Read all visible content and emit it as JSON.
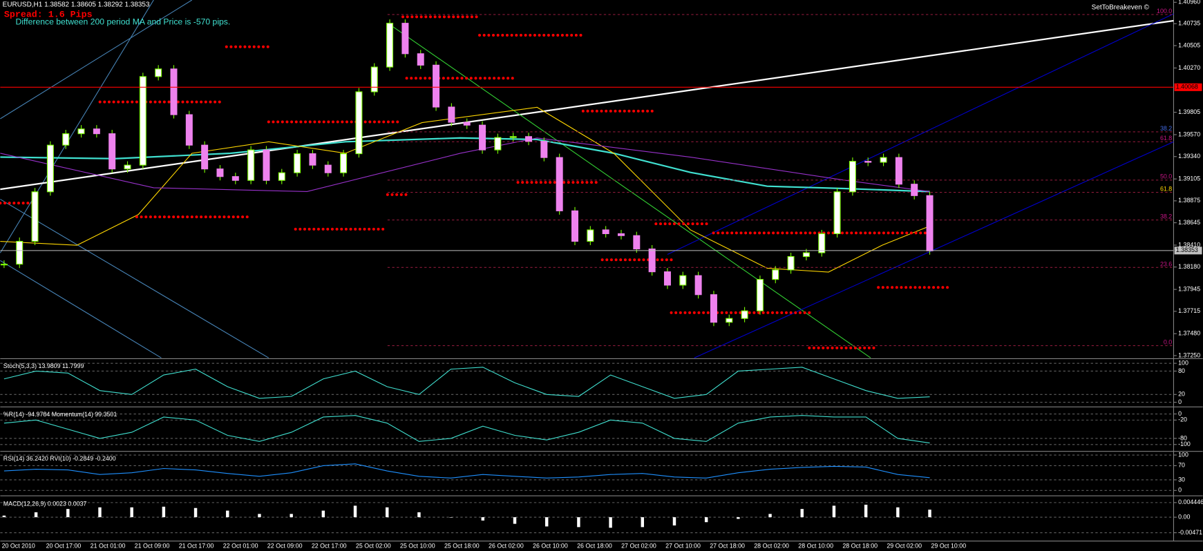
{
  "header": {
    "symbol_line": "EURUSD,H1  1.38582 1.38605 1.38292 1.38353",
    "spread": "Spread: 1.6 Pips",
    "ma_note": "Difference between 200 period MA and Price is -570 pips.",
    "expert": "SetToBreakeven ©"
  },
  "chart_data": [
    {
      "type": "candlestick",
      "bull_color": "#ffffff",
      "bull_edge": "#7cfc00",
      "bear_color": "#ee82ee",
      "values": [
        1.3821,
        1.3845,
        1.3897,
        1.3946,
        1.3958,
        1.3963,
        1.3958,
        1.3921,
        1.3925,
        1.4018,
        1.4026,
        1.3978,
        1.3946,
        1.3921,
        1.3913,
        1.3909,
        1.3941,
        1.3909,
        1.3917,
        1.3937,
        1.3925,
        1.3917,
        1.3937,
        1.4002,
        1.4028,
        1.4074,
        1.4042,
        1.403,
        1.3986,
        1.397,
        1.3967,
        1.3941,
        1.3954,
        1.3955,
        1.395,
        1.3933,
        1.3877,
        1.3845,
        1.3857,
        1.3853,
        1.3851,
        1.3837,
        1.3813,
        1.3799,
        1.3809,
        1.3789,
        1.376,
        1.3764,
        1.3772,
        1.3805,
        1.3815,
        1.3829,
        1.3833,
        1.3853,
        1.3897,
        1.3929,
        1.3928,
        1.3933,
        1.3905,
        1.3893,
        1.3835
      ],
      "ylim": [
        1.37226,
        1.40984
      ],
      "yticks": [
        {
          "value": 1.4096,
          "label": "1.40960"
        },
        {
          "value": 1.40735,
          "label": "1.40735"
        },
        {
          "value": 1.40505,
          "label": "1.40505"
        },
        {
          "value": 1.4027,
          "label": "1.40270"
        },
        {
          "value": 1.39805,
          "label": "1.39805"
        },
        {
          "value": 1.3957,
          "label": "1.39570"
        },
        {
          "value": 1.3934,
          "label": "1.39340"
        },
        {
          "value": 1.39105,
          "label": "1.39105"
        },
        {
          "value": 1.38875,
          "label": "1.38875"
        },
        {
          "value": 1.38645,
          "label": "1.38645"
        },
        {
          "value": 1.3841,
          "label": "1.38410"
        },
        {
          "value": 1.3818,
          "label": "1.38180"
        },
        {
          "value": 1.37945,
          "label": "1.37945"
        },
        {
          "value": 1.37715,
          "label": "1.37715"
        },
        {
          "value": 1.3748,
          "label": "1.37480"
        },
        {
          "value": 1.3725,
          "label": "1.37250"
        }
      ],
      "hlines": [
        {
          "value": 1.40068,
          "label": "1.40068",
          "color": "#ff0000"
        },
        {
          "value": 1.38353,
          "label": "1.38353",
          "color": "#c0c0c0"
        }
      ],
      "fib_labels": [
        {
          "label": "100.0",
          "color": "#c71585"
        },
        {
          "label": "38.2",
          "color": "#4169e1"
        },
        {
          "label": "61.8",
          "color": "#c71585"
        },
        {
          "label": "50.0",
          "color": "#c71585"
        },
        {
          "label": "61.8",
          "color": "#ffd700"
        },
        {
          "label": "38.2",
          "color": "#c71585"
        },
        {
          "label": "23.6",
          "color": "#c71585"
        },
        {
          "label": "0.0",
          "color": "#c71585"
        }
      ],
      "xtick_labels": [
        "20 Oct 2010",
        "20 Oct 17:00",
        "21 Oct 01:00",
        "21 Oct 09:00",
        "21 Oct 17:00",
        "22 Oct 01:00",
        "22 Oct 09:00",
        "22 Oct 17:00",
        "25 Oct 02:00",
        "25 Oct 10:00",
        "25 Oct 18:00",
        "26 Oct 02:00",
        "26 Oct 10:00",
        "26 Oct 18:00",
        "27 Oct 02:00",
        "27 Oct 10:00",
        "27 Oct 18:00",
        "28 Oct 02:00",
        "28 Oct 10:00",
        "28 Oct 18:00",
        "29 Oct 02:00",
        "29 Oct 10:00"
      ]
    },
    {
      "type": "line",
      "title": "Stoch(5,3,3) 13.9809 11.7999",
      "color": "#40e0d0",
      "ylim": [
        -10,
        108
      ],
      "yticks": [
        100,
        80,
        20,
        0
      ],
      "values": [
        60,
        80,
        75,
        30,
        20,
        70,
        85,
        40,
        10,
        15,
        60,
        80,
        40,
        20,
        85,
        90,
        50,
        20,
        15,
        70,
        40,
        10,
        20,
        80,
        85,
        90,
        60,
        30,
        10,
        14
      ]
    },
    {
      "type": "line",
      "title": "%R(14) -94.9784  Momentum(14) 99.3501",
      "color": "#40e0d0",
      "ylim": [
        -120,
        18
      ],
      "yticks": [
        0,
        -20,
        -80,
        -100
      ],
      "values": [
        -30,
        -20,
        -50,
        -80,
        -60,
        -10,
        -20,
        -70,
        -90,
        -60,
        -10,
        -5,
        -30,
        -90,
        -80,
        -40,
        -70,
        -85,
        -60,
        -20,
        -30,
        -80,
        -90,
        -30,
        -10,
        -5,
        -10,
        -10,
        -80,
        -95
      ]
    },
    {
      "type": "line",
      "title": "RSI(14) 36.2420  RVI(10) -0.2849 -0.2400",
      "color": "#1e90ff",
      "ylim": [
        -13,
        106
      ],
      "yticks": [
        100,
        70,
        30,
        0
      ],
      "values": [
        55,
        60,
        58,
        45,
        50,
        62,
        58,
        48,
        40,
        50,
        70,
        75,
        55,
        40,
        35,
        45,
        40,
        35,
        38,
        45,
        48,
        38,
        35,
        50,
        60,
        65,
        68,
        66,
        45,
        36
      ]
    },
    {
      "type": "bar",
      "title": "MACD(12,26,9) 0.0023 0.0037",
      "color": "#ffffff",
      "ylim": [
        -0.007,
        0.0058
      ],
      "yticks": [
        0.004446,
        {
          "value": 0,
          "label": "0.00"
        },
        -0.00471
      ],
      "values": [
        0.0005,
        0.0015,
        0.0025,
        0.003,
        0.003,
        0.0032,
        0.0028,
        0.002,
        0.001,
        0.001,
        0.002,
        0.0035,
        0.003,
        0.0015,
        0,
        -0.001,
        -0.002,
        -0.0028,
        -0.003,
        -0.0032,
        -0.003,
        -0.0025,
        -0.0015,
        -0.0005,
        0.001,
        0.0025,
        0.0035,
        0.0038,
        0.003,
        0.0023
      ]
    }
  ]
}
